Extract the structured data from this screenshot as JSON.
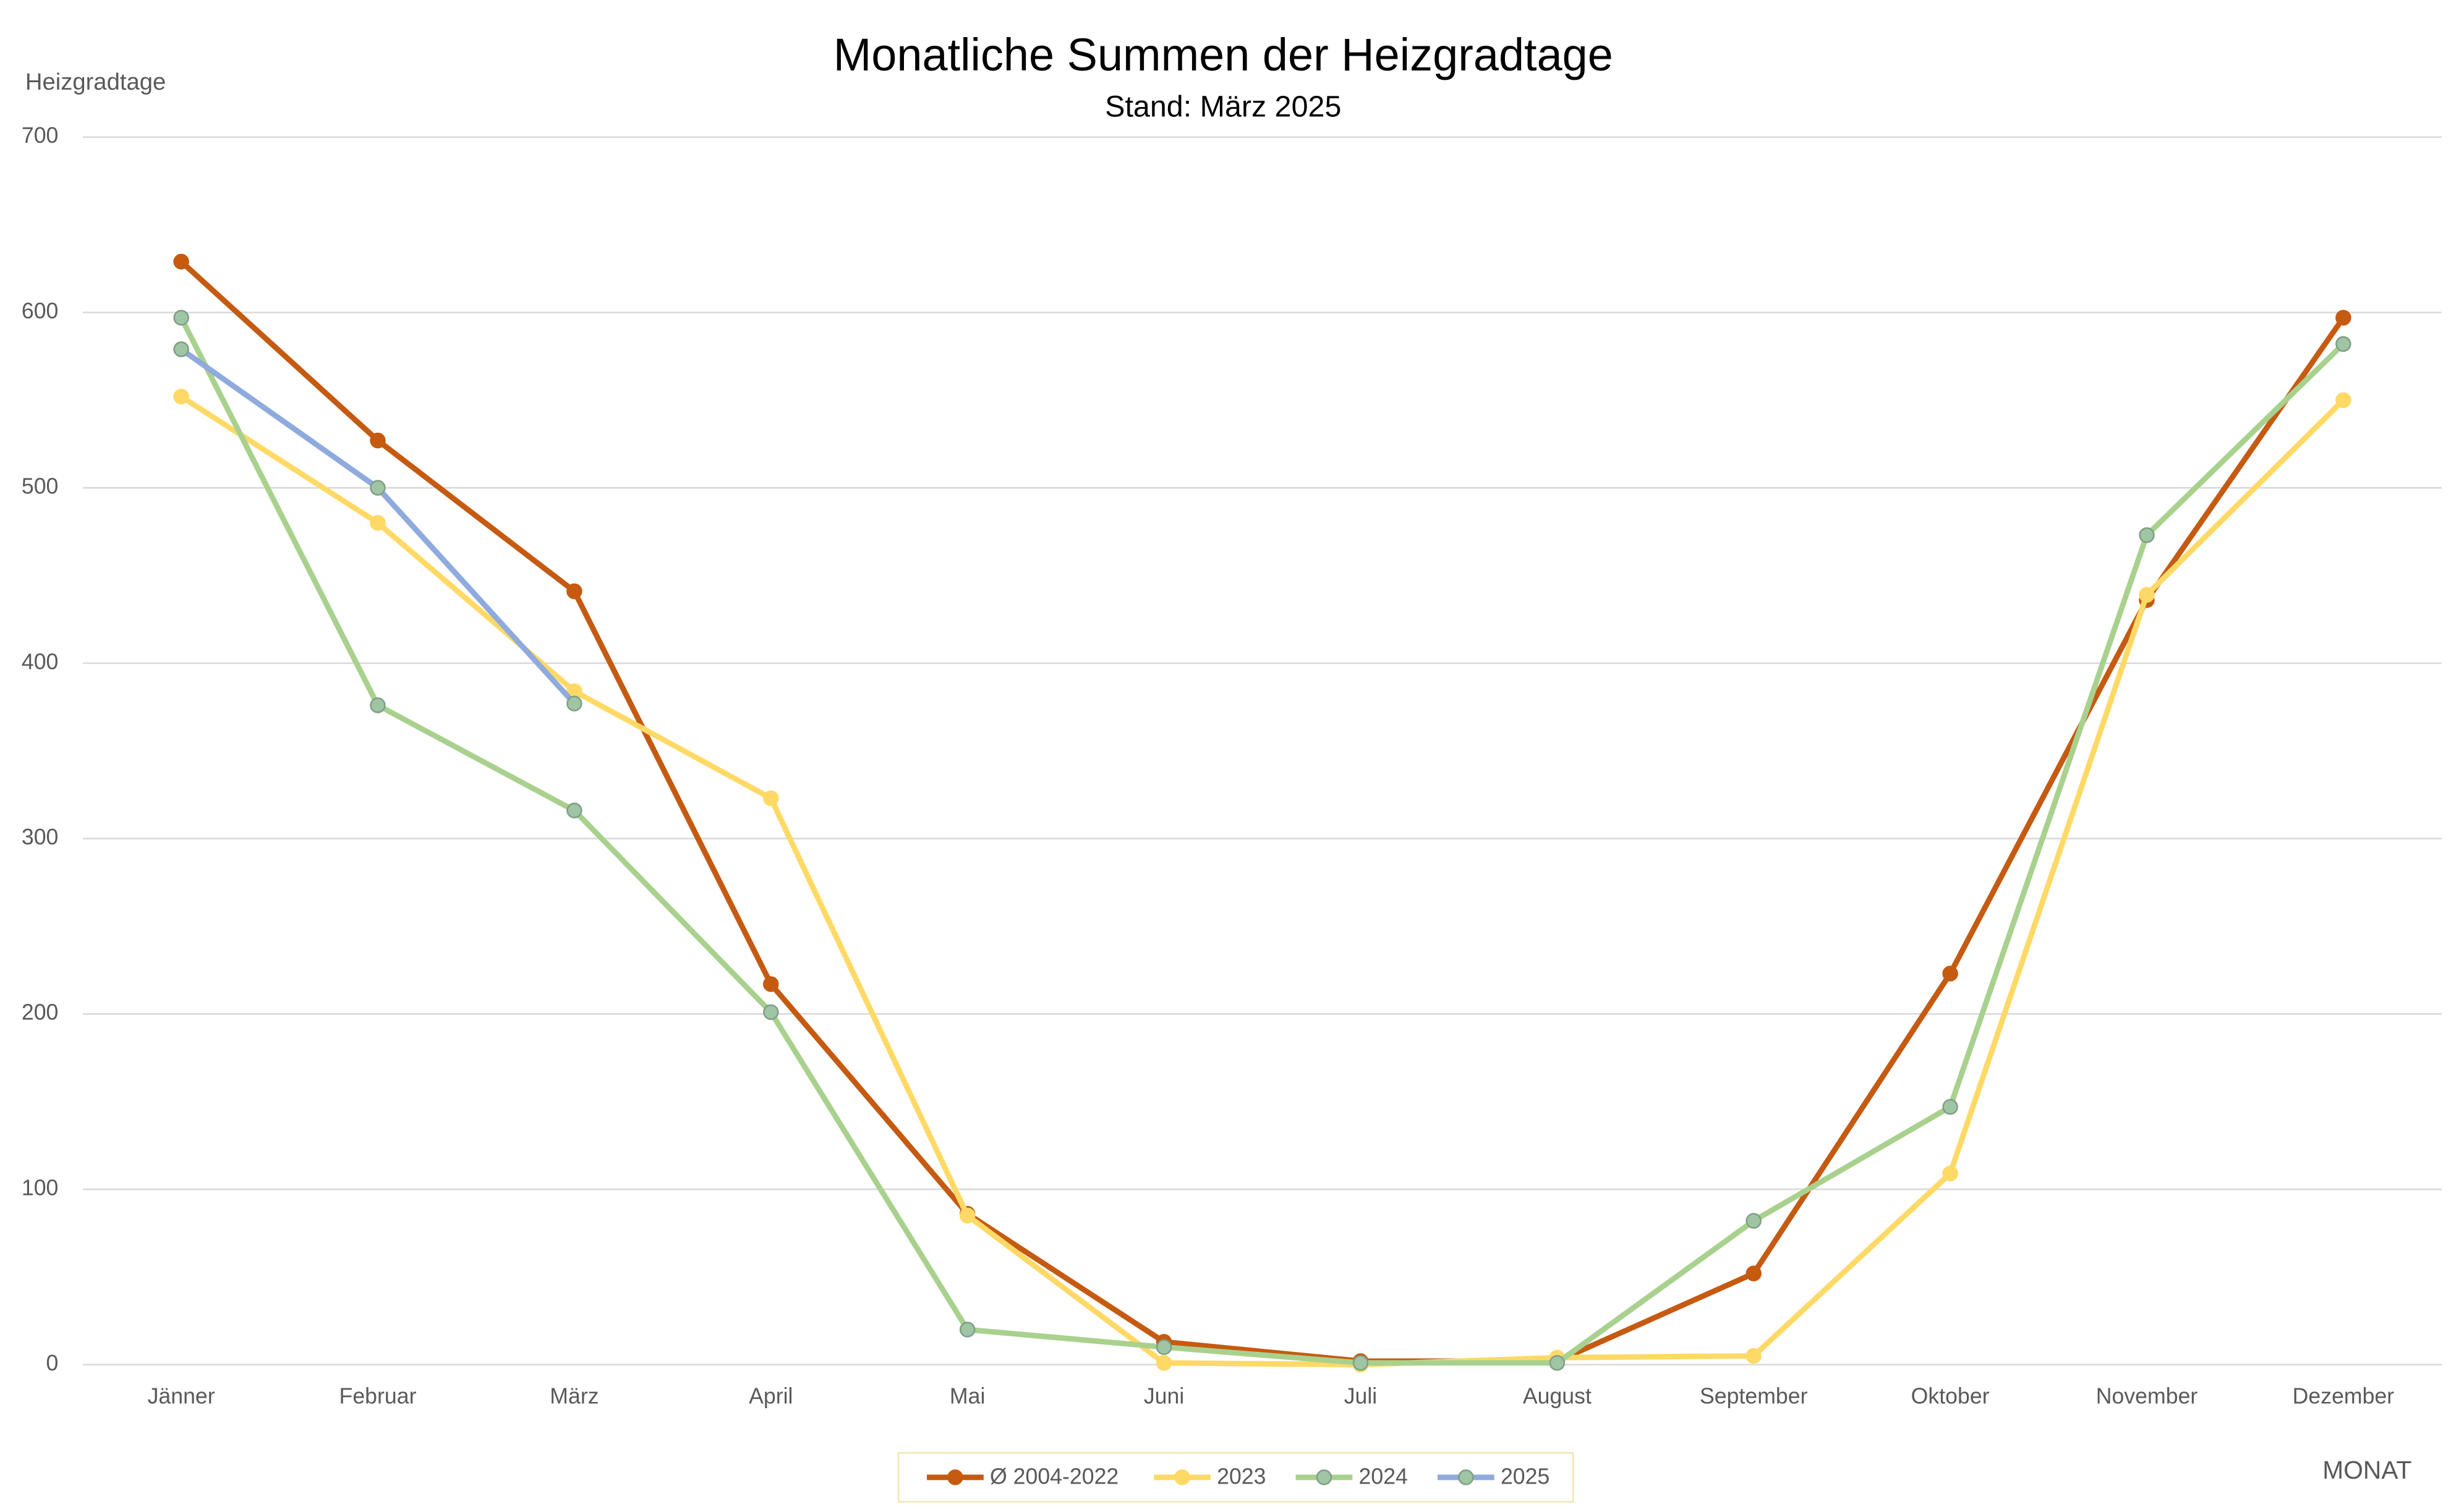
{
  "chart_data": {
    "type": "line",
    "title": "Monatliche Summen der Heizgradtage",
    "subtitle": "Stand: März 2025",
    "y_label": "Heizgradtage",
    "x_label": "MONAT",
    "categories": [
      "Jänner",
      "Februar",
      "März",
      "April",
      "Mai",
      "Juni",
      "Juli",
      "August",
      "September",
      "Oktober",
      "November",
      "Dezember"
    ],
    "series": [
      {
        "name": "Ø 2004-2022",
        "color": "#c55a11",
        "marker_color": "#c55a11",
        "values": [
          629,
          527,
          441,
          217,
          86,
          13,
          2,
          2,
          52,
          223,
          436,
          597
        ]
      },
      {
        "name": "2023",
        "color": "#ffd966",
        "marker_color": "#ffd966",
        "values": [
          552,
          480,
          384,
          323,
          85,
          1,
          0,
          4,
          5,
          109,
          439,
          550
        ]
      },
      {
        "name": "2024",
        "color": "#a9d18e",
        "marker_color": "#9fc5a4",
        "values": [
          597,
          376,
          316,
          201,
          20,
          10,
          1,
          1,
          82,
          147,
          473,
          582
        ]
      },
      {
        "name": "2025",
        "color": "#8faadc",
        "marker_color": "#9fc5a4",
        "values": [
          579,
          500,
          377,
          null,
          null,
          null,
          null,
          null,
          null,
          null,
          null,
          null
        ]
      }
    ],
    "ylim": [
      0,
      700
    ],
    "yticks": [
      0,
      100,
      200,
      300,
      400,
      500,
      600,
      700
    ],
    "grid": true,
    "legend": "bottom"
  }
}
